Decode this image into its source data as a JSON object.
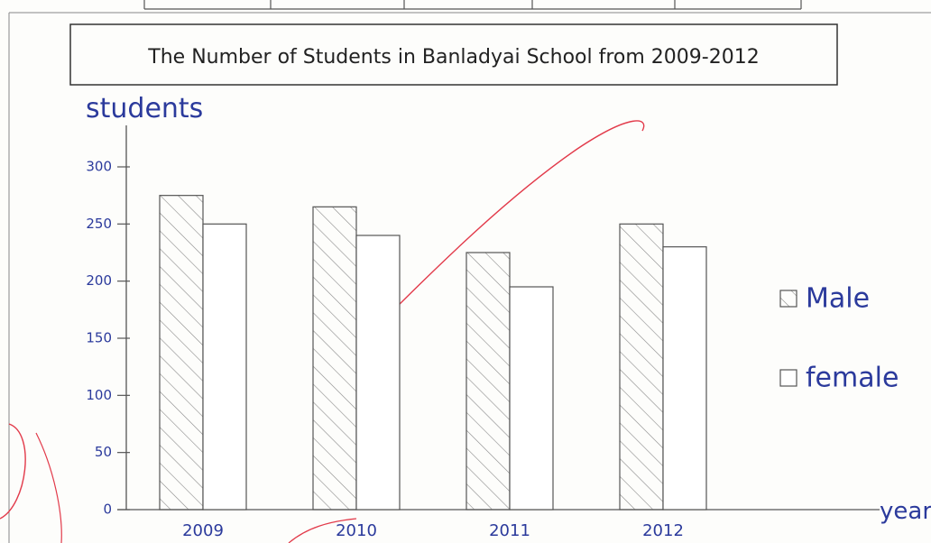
{
  "chart_data": {
    "type": "bar",
    "title": "The Number of Students in Banladyai School from 2009-2012",
    "y_label": "students",
    "x_label": "year",
    "categories": [
      "2009",
      "2010",
      "2011",
      "2012"
    ],
    "series": [
      {
        "name": "Male",
        "color": "#9a9a9a",
        "pattern": "hatch",
        "values": [
          275,
          265,
          225,
          250
        ]
      },
      {
        "name": "female",
        "color": "#ffffff",
        "values": [
          250,
          240,
          195,
          230
        ]
      }
    ],
    "ylim": [
      0,
      330
    ],
    "yticks": [
      0,
      50,
      100,
      150,
      200,
      250,
      300
    ],
    "legend": "right",
    "grid": false
  }
}
